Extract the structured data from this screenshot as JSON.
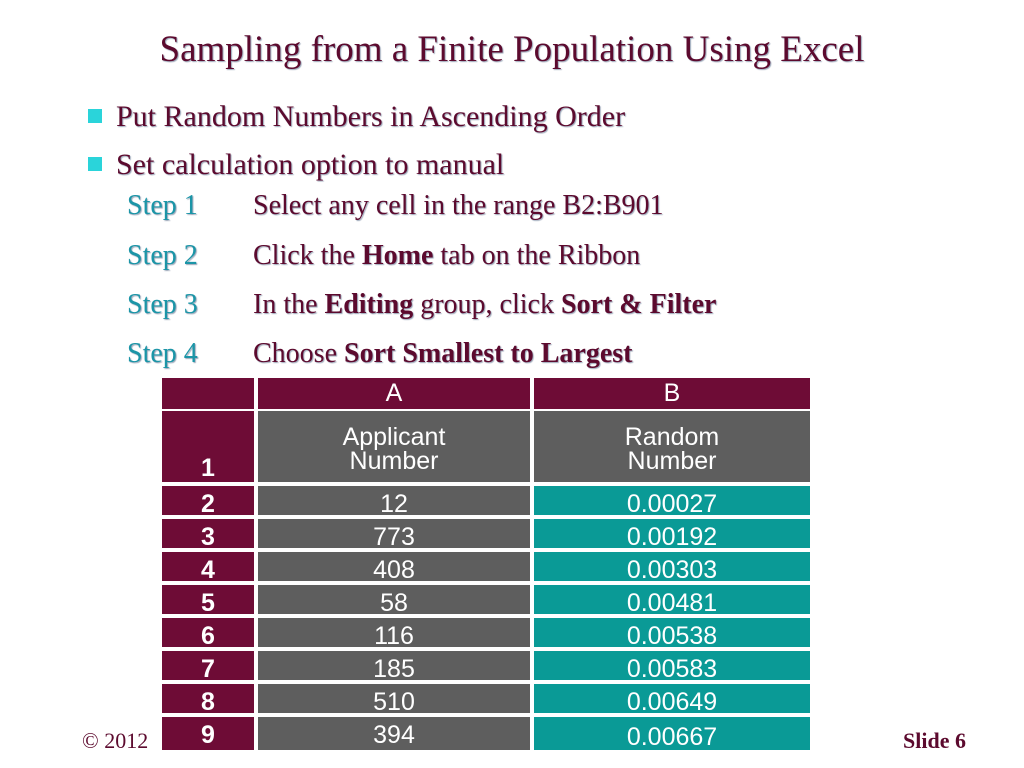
{
  "title": "Sampling from a Finite Population Using Excel",
  "bullets": [
    "Put Random Numbers in Ascending Order",
    "Set calculation option to manual"
  ],
  "steps": [
    {
      "num": "Step 1",
      "pre": "Select any cell in the range B2:B901",
      "bold": "",
      "mid": "",
      "bold2": ""
    },
    {
      "num": "Step 2",
      "pre": "Click the ",
      "bold": "Home",
      "mid": " tab on the Ribbon",
      "bold2": ""
    },
    {
      "num": "Step 3",
      "pre": "In the ",
      "bold": "Editing",
      "mid": " group, click ",
      "bold2": "Sort & Filter"
    },
    {
      "num": "Step 4",
      "pre": "Choose ",
      "bold": "Sort Smallest to Largest",
      "mid": "",
      "bold2": ""
    }
  ],
  "sheet": {
    "col_a": "A",
    "col_b": "B",
    "header_row": "1",
    "header_a1": "Applicant",
    "header_a2": "Number",
    "header_b1": "Random",
    "header_b2": "Number",
    "rows": [
      {
        "row": "2",
        "a": "12",
        "b": "0.00027"
      },
      {
        "row": "3",
        "a": "773",
        "b": "0.00192"
      },
      {
        "row": "4",
        "a": "408",
        "b": "0.00303"
      },
      {
        "row": "5",
        "a": "58",
        "b": "0.00481"
      },
      {
        "row": "6",
        "a": "116",
        "b": "0.00538"
      },
      {
        "row": "7",
        "a": "185",
        "b": "0.00583"
      },
      {
        "row": "8",
        "a": "510",
        "b": "0.00649"
      },
      {
        "row": "9",
        "a": "394",
        "b": "0.00667"
      }
    ]
  },
  "footer": {
    "left": "© 2012",
    "right": "Slide 6"
  }
}
